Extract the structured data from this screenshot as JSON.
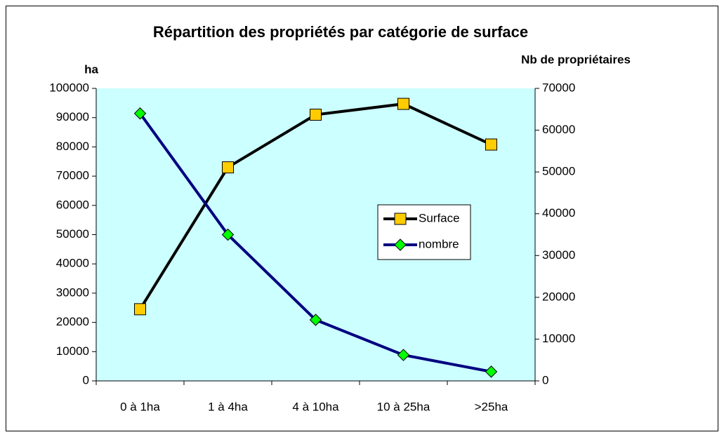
{
  "chart_data": {
    "type": "line",
    "title": "Répartition des propriétés par catégorie de surface",
    "y_label": "ha",
    "y2_label": "Nb de propriétaires",
    "categories": [
      "0 à 1ha",
      "1 à 4ha",
      "4 à 10ha",
      "10 à 25ha",
      ">25ha"
    ],
    "series": [
      {
        "name": "Surface",
        "color": "#000000",
        "marker_color": "#ffcc00",
        "marker": "square",
        "values": [
          24500,
          73000,
          91000,
          94700,
          80800
        ]
      },
      {
        "name": "nombre",
        "color": "#000080",
        "marker_color": "#00ff00",
        "marker": "diamond",
        "axis": "y2",
        "values": [
          64000,
          35000,
          14600,
          6200,
          2200
        ]
      }
    ],
    "ylim": [
      0,
      100000
    ],
    "yticks": [
      0,
      10000,
      20000,
      30000,
      40000,
      50000,
      60000,
      70000,
      80000,
      90000,
      100000
    ],
    "y2lim": [
      0,
      70000
    ],
    "y2ticks": [
      0,
      10000,
      20000,
      30000,
      40000,
      50000,
      60000,
      70000
    ],
    "plot_background": "#ccffff",
    "legend": "center-right"
  }
}
